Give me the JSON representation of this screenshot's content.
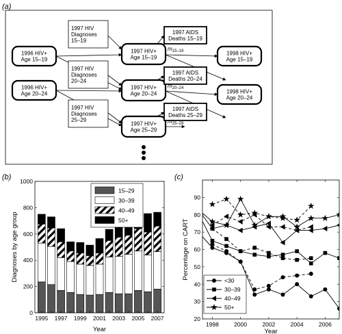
{
  "panels": {
    "a": {
      "label": "(a)",
      "nodes": {
        "hiv1996_15": [
          "1996 HIV+",
          "Age 15–19"
        ],
        "hiv1996_20": [
          "1996 HIV+",
          "Age 20–24"
        ],
        "diag_15": [
          "1997 HIV",
          "Diagnoses",
          "15–19"
        ],
        "diag_20": [
          "1997 HIV",
          "Diagnoses",
          "20–24"
        ],
        "diag_25": [
          "1997 HIV",
          "Diagnoses",
          "25–29"
        ],
        "hiv1997_15": [
          "1997 HIV+",
          "Age 15–19"
        ],
        "hiv1997_20": [
          "1997 HIV+",
          "Age 20–24"
        ],
        "hiv1997_25": [
          "1997 HIV+",
          "Age 25–29"
        ],
        "aids_15": [
          "1997 AIDS",
          "Deaths 15–19"
        ],
        "aids_20": [
          "1997 AIDS",
          "Deaths 20–24"
        ],
        "aids_25": [
          "1997 AIDS",
          "Deaths 25–29"
        ],
        "hiv1998_15": [
          "1998 HIV+",
          "Age 15–19"
        ],
        "hiv1998_20": [
          "1998 HIV+",
          "Age 20–24"
        ]
      },
      "migration": [
        {
          "m": "m",
          "sub": "15–19"
        },
        {
          "m": "m",
          "sub": "20–24"
        },
        {
          "m": "m",
          "sub": "25–29"
        }
      ]
    },
    "b": {
      "label": "(b)"
    },
    "c": {
      "label": "(c)"
    }
  },
  "chart_data": [
    {
      "panel": "b",
      "type": "bar",
      "stacked": true,
      "xlabel": "Year",
      "ylabel": "Diagnoses by age group",
      "ylim": [
        0,
        1000
      ],
      "yticks": [
        0,
        200,
        400,
        600,
        800,
        1000
      ],
      "categories": [
        "1995",
        "1996",
        "1997",
        "1998",
        "1999",
        "2000",
        "2001",
        "2002",
        "2003",
        "2004",
        "2005",
        "2006",
        "2007"
      ],
      "xtick_labels": [
        "1995",
        "1997",
        "1999",
        "2001",
        "2003",
        "2005",
        "2007"
      ],
      "legend_position": "top",
      "series": [
        {
          "name": "15–29",
          "color": "#555555",
          "values": [
            235,
            215,
            170,
            155,
            140,
            135,
            140,
            155,
            145,
            145,
            170,
            160,
            180
          ]
        },
        {
          "name": "30–39",
          "color": "#ffffff",
          "values": [
            295,
            290,
            250,
            235,
            230,
            225,
            230,
            270,
            285,
            300,
            300,
            280,
            285
          ]
        },
        {
          "name": "40–49",
          "color": "hatch",
          "values": [
            145,
            140,
            120,
            80,
            85,
            75,
            85,
            125,
            145,
            145,
            170,
            175,
            195
          ]
        },
        {
          "name": "50+",
          "color": "#000000",
          "values": [
            75,
            85,
            100,
            70,
            80,
            80,
            110,
            85,
            95,
            85,
            115,
            140,
            105
          ]
        }
      ]
    },
    {
      "panel": "c",
      "type": "line",
      "xlabel": "Year",
      "ylabel": "Percentage on CART",
      "xlim": [
        1997.3,
        2007
      ],
      "ylim": [
        20,
        100
      ],
      "xticks": [
        1998,
        2000,
        2002,
        2004,
        2006
      ],
      "yticks": [
        20,
        30,
        40,
        50,
        60,
        70,
        80,
        90
      ],
      "legend_position": "bottom-left",
      "series": [
        {
          "name": "<30",
          "marker": "circle",
          "solid": {
            "x": [
              1997,
              1998,
              1999,
              2000,
              2001,
              2002,
              2003,
              2004,
              2005,
              2006,
              2007
            ],
            "y": [
              70,
              61,
              58,
              53,
              34,
              37,
              34,
              40,
              33,
              37,
              26
            ]
          },
          "dashed": {
            "x": [
              1998,
              1999,
              2000,
              2001,
              2002,
              2003,
              2004,
              2005
            ],
            "y": [
              63,
              59,
              53,
              37,
              39,
              44,
              45,
              46
            ]
          }
        },
        {
          "name": "30–39",
          "marker": "square",
          "solid": {
            "x": [
              1997,
              1998,
              1999,
              2000,
              2001,
              2002,
              2003,
              2004,
              2005,
              2006,
              2007
            ],
            "y": [
              81,
              65,
              62,
              59,
              57,
              56,
              57,
              59,
              52,
              58,
              55
            ]
          },
          "dashed": {
            "x": [
              1998,
              1999,
              2000,
              2001,
              2002,
              2003,
              2004,
              2005
            ],
            "y": [
              72,
              66,
              59,
              61,
              58,
              55,
              54,
              55
            ]
          }
        },
        {
          "name": "40–49",
          "marker": "triangle-left",
          "solid": {
            "x": [
              1997,
              1998,
              1999,
              2000,
              2001,
              2002,
              2003,
              2004,
              2005,
              2006,
              2007
            ],
            "y": [
              83,
              72,
              74,
              71,
              73,
              75,
              64,
              71,
              71,
              72,
              74
            ]
          },
          "dashed": {
            "x": [
              1998,
              1999,
              2000,
              2001,
              2002,
              2003,
              2004,
              2005
            ],
            "y": [
              74,
              79,
              76,
              80,
              73,
              73,
              71,
              73
            ]
          }
        },
        {
          "name": "50+",
          "marker": "star",
          "solid": {
            "x": [
              1997,
              1998,
              1999,
              2000,
              2001,
              2002,
              2003,
              2004,
              2005,
              2006,
              2007
            ],
            "y": [
              83,
              76,
              74,
              89,
              74,
              79,
              79,
              73,
              78,
              78,
              80
            ]
          },
          "dashed": {
            "x": [
              1998,
              1999,
              2000,
              2001,
              2002,
              2003,
              2004,
              2005
            ],
            "y": [
              86,
              89,
              80,
              81,
              79,
              78,
              77,
              85
            ]
          }
        }
      ]
    }
  ]
}
